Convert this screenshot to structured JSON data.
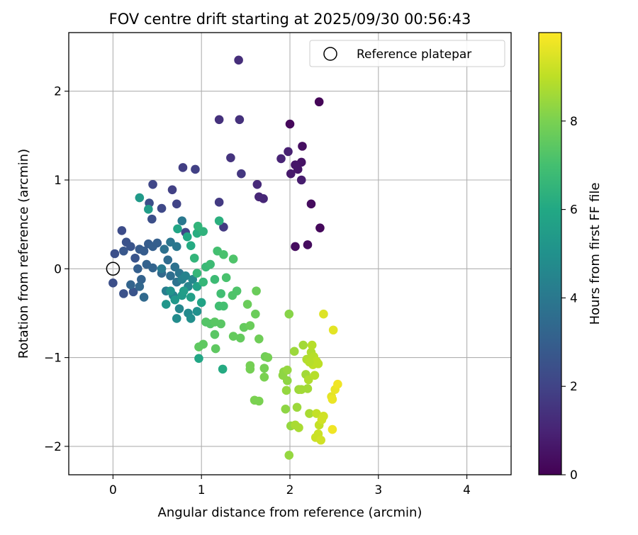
{
  "chart_data": {
    "type": "scatter",
    "title": "FOV centre drift starting at 2025/09/30 00:56:43",
    "xlabel": "Angular distance from reference (arcmin)",
    "ylabel": "Rotation from reference (arcmin)",
    "xlim": [
      -0.5,
      4.5
    ],
    "ylim": [
      -2.32,
      2.66
    ],
    "xticks": [
      0,
      1,
      2,
      3,
      4
    ],
    "yticks": [
      -2,
      -1,
      0,
      1,
      2
    ],
    "grid": true,
    "legend": {
      "position": "top-right",
      "entries": [
        "Reference platepar"
      ]
    },
    "reference_point": {
      "x": 0,
      "y": 0,
      "label": "Reference platepar"
    },
    "colorbar": {
      "label": "Hours from first FF file",
      "min": 0,
      "max": 10,
      "ticks": [
        0,
        2,
        4,
        6,
        8
      ],
      "colormap": "viridis"
    },
    "points": [
      [
        2.33,
        1.88,
        0.1
      ],
      [
        2.0,
        1.63,
        0.2
      ],
      [
        2.34,
        0.46,
        0.2
      ],
      [
        2.24,
        0.73,
        0.3
      ],
      [
        2.2,
        0.27,
        0.3
      ],
      [
        2.06,
        0.25,
        0.3
      ],
      [
        2.14,
        1.38,
        0.4
      ],
      [
        2.13,
        1.2,
        0.5
      ],
      [
        2.06,
        1.17,
        0.6
      ],
      [
        2.09,
        1.12,
        0.6
      ],
      [
        2.01,
        1.07,
        0.7
      ],
      [
        2.13,
        1.0,
        0.8
      ],
      [
        1.98,
        1.32,
        0.9
      ],
      [
        1.9,
        1.24,
        1.0
      ],
      [
        1.65,
        0.81,
        1.1
      ],
      [
        1.7,
        0.79,
        1.1
      ],
      [
        1.63,
        0.95,
        1.2
      ],
      [
        1.42,
        2.35,
        1.3
      ],
      [
        1.43,
        1.68,
        1.4
      ],
      [
        1.2,
        1.68,
        1.4
      ],
      [
        1.33,
        1.25,
        1.5
      ],
      [
        1.45,
        1.07,
        1.6
      ],
      [
        1.25,
        0.47,
        1.7
      ],
      [
        1.2,
        0.75,
        1.7
      ],
      [
        0.79,
        1.14,
        1.8
      ],
      [
        0.93,
        1.12,
        1.9
      ],
      [
        0.67,
        0.89,
        1.9
      ],
      [
        0.72,
        0.73,
        2.0
      ],
      [
        0.82,
        0.41,
        2.1
      ],
      [
        0.45,
        0.95,
        2.1
      ],
      [
        0.55,
        0.68,
        2.2
      ],
      [
        0.41,
        0.74,
        2.4
      ],
      [
        0.44,
        0.56,
        2.4
      ],
      [
        0.1,
        0.43,
        2.3
      ],
      [
        0.02,
        0.17,
        2.4
      ],
      [
        0.0,
        -0.16,
        2.4
      ],
      [
        0.12,
        -0.28,
        2.5
      ],
      [
        0.23,
        -0.26,
        2.6
      ],
      [
        0.15,
        0.3,
        2.5
      ],
      [
        0.2,
        0.25,
        2.6
      ],
      [
        0.25,
        0.12,
        2.6
      ],
      [
        0.12,
        0.2,
        2.7
      ],
      [
        0.3,
        0.22,
        2.8
      ],
      [
        0.35,
        0.2,
        2.9
      ],
      [
        0.4,
        0.28,
        2.9
      ],
      [
        0.45,
        0.25,
        3.0
      ],
      [
        0.5,
        0.29,
        3.0
      ],
      [
        0.28,
        0.0,
        3.0
      ],
      [
        0.32,
        -0.12,
        3.1
      ],
      [
        0.38,
        0.05,
        3.1
      ],
      [
        0.45,
        0.01,
        3.2
      ],
      [
        0.2,
        -0.18,
        3.2
      ],
      [
        0.3,
        -0.2,
        3.3
      ],
      [
        0.35,
        -0.32,
        3.4
      ],
      [
        0.55,
        -0.05,
        3.4
      ],
      [
        0.62,
        0.1,
        3.5
      ],
      [
        0.65,
        -0.08,
        3.6
      ],
      [
        0.7,
        0.02,
        3.7
      ],
      [
        0.72,
        -0.15,
        3.8
      ],
      [
        0.75,
        -0.05,
        3.9
      ],
      [
        0.58,
        0.22,
        3.7
      ],
      [
        0.65,
        0.3,
        3.9
      ],
      [
        0.72,
        0.25,
        4.0
      ],
      [
        0.78,
        0.54,
        4.0
      ],
      [
        0.55,
        0.0,
        4.1
      ],
      [
        0.6,
        -0.25,
        4.2
      ],
      [
        0.68,
        -0.3,
        4.3
      ],
      [
        0.78,
        -0.12,
        4.3
      ],
      [
        0.82,
        -0.08,
        4.4
      ],
      [
        0.85,
        -0.2,
        4.5
      ],
      [
        0.9,
        -0.12,
        4.6
      ],
      [
        0.75,
        -0.45,
        4.6
      ],
      [
        0.85,
        -0.5,
        4.7
      ],
      [
        0.72,
        -0.56,
        4.8
      ],
      [
        0.88,
        -0.56,
        4.9
      ],
      [
        0.95,
        -0.48,
        5.0
      ],
      [
        0.65,
        -0.25,
        5.1
      ],
      [
        0.6,
        -0.4,
        5.2
      ],
      [
        0.7,
        -0.35,
        5.3
      ],
      [
        0.78,
        -0.3,
        5.4
      ],
      [
        0.8,
        -0.25,
        5.5
      ],
      [
        0.88,
        -0.32,
        5.6
      ],
      [
        0.95,
        -0.2,
        5.7
      ],
      [
        1.0,
        -0.38,
        5.8
      ],
      [
        0.4,
        0.67,
        5.5
      ],
      [
        0.3,
        0.8,
        5.4
      ],
      [
        0.73,
        0.45,
        5.9
      ],
      [
        0.84,
        0.36,
        6.0
      ],
      [
        0.88,
        0.26,
        6.1
      ],
      [
        0.95,
        0.4,
        6.2
      ],
      [
        0.97,
        -1.01,
        5.9
      ],
      [
        1.24,
        -1.13,
        6.1
      ],
      [
        1.2,
        0.54,
        6.3
      ],
      [
        1.02,
        0.42,
        6.4
      ],
      [
        0.96,
        0.48,
        6.5
      ],
      [
        0.92,
        0.12,
        6.5
      ],
      [
        0.95,
        -0.05,
        6.6
      ],
      [
        1.02,
        -0.15,
        6.6
      ],
      [
        1.05,
        0.02,
        6.7
      ],
      [
        1.1,
        0.05,
        6.8
      ],
      [
        1.15,
        -0.12,
        6.8
      ],
      [
        1.22,
        -0.28,
        6.9
      ],
      [
        1.2,
        -0.42,
        6.9
      ],
      [
        1.25,
        -0.42,
        7.0
      ],
      [
        1.18,
        0.2,
        7.0
      ],
      [
        1.25,
        0.16,
        7.1
      ],
      [
        1.28,
        -0.1,
        7.1
      ],
      [
        1.35,
        -0.3,
        7.2
      ],
      [
        1.4,
        -0.25,
        7.2
      ],
      [
        1.36,
        0.11,
        7.2
      ],
      [
        1.05,
        -0.6,
        7.3
      ],
      [
        1.1,
        -0.62,
        7.3
      ],
      [
        1.15,
        -0.6,
        7.4
      ],
      [
        1.22,
        -0.62,
        7.4
      ],
      [
        1.15,
        -0.74,
        7.4
      ],
      [
        1.16,
        -0.9,
        7.5
      ],
      [
        1.02,
        -0.85,
        7.5
      ],
      [
        0.97,
        -0.88,
        7.5
      ],
      [
        1.36,
        -0.76,
        7.6
      ],
      [
        1.44,
        -0.78,
        7.6
      ],
      [
        1.48,
        -0.66,
        7.6
      ],
      [
        1.52,
        -0.4,
        7.7
      ],
      [
        1.55,
        -0.64,
        7.7
      ],
      [
        1.61,
        -0.51,
        7.7
      ],
      [
        1.62,
        -0.25,
        7.7
      ],
      [
        1.65,
        -0.79,
        7.8
      ],
      [
        1.72,
        -0.99,
        7.8
      ],
      [
        1.55,
        -1.09,
        7.9
      ],
      [
        1.55,
        -1.13,
        7.9
      ],
      [
        1.75,
        -1.0,
        7.9
      ],
      [
        1.71,
        -1.12,
        7.9
      ],
      [
        1.71,
        -1.22,
        8.0
      ],
      [
        1.6,
        -1.48,
        8.0
      ],
      [
        1.65,
        -1.49,
        8.0
      ],
      [
        1.99,
        -0.51,
        8.2
      ],
      [
        1.93,
        -1.16,
        8.3
      ],
      [
        1.97,
        -1.26,
        8.3
      ],
      [
        1.95,
        -1.58,
        8.3
      ],
      [
        1.96,
        -1.37,
        8.4
      ],
      [
        2.01,
        -1.77,
        8.4
      ],
      [
        1.99,
        -2.1,
        8.4
      ],
      [
        2.05,
        -0.93,
        8.5
      ],
      [
        2.08,
        -1.56,
        8.5
      ],
      [
        2.1,
        -1.36,
        8.5
      ],
      [
        2.13,
        -1.36,
        8.6
      ],
      [
        2.15,
        -0.86,
        8.6
      ],
      [
        2.18,
        -1.19,
        8.6
      ],
      [
        2.2,
        -1.35,
        8.6
      ],
      [
        2.22,
        -1.63,
        8.7
      ],
      [
        2.06,
        -1.76,
        8.7
      ],
      [
        2.1,
        -1.79,
        8.7
      ],
      [
        2.19,
        -1.02,
        8.8
      ],
      [
        2.21,
        -1.25,
        8.8
      ],
      [
        2.24,
        -0.94,
        8.8
      ],
      [
        2.25,
        -0.86,
        8.9
      ],
      [
        2.27,
        -0.99,
        8.9
      ],
      [
        2.28,
        -1.2,
        8.9
      ],
      [
        2.3,
        -1.04,
        9.0
      ],
      [
        2.32,
        -1.07,
        9.0
      ],
      [
        2.3,
        -1.63,
        9.1
      ],
      [
        2.33,
        -1.76,
        9.1
      ],
      [
        2.32,
        -1.86,
        9.2
      ],
      [
        2.29,
        -1.9,
        9.2
      ],
      [
        2.35,
        -1.93,
        9.3
      ],
      [
        2.36,
        -1.7,
        9.3
      ],
      [
        2.38,
        -1.66,
        9.3
      ],
      [
        2.38,
        -0.51,
        9.5
      ],
      [
        2.49,
        -0.69,
        9.6
      ],
      [
        2.47,
        -1.44,
        9.6
      ],
      [
        2.48,
        -1.47,
        9.7
      ],
      [
        2.51,
        -1.36,
        9.7
      ],
      [
        2.54,
        -1.3,
        9.8
      ],
      [
        2.48,
        -1.81,
        9.8
      ],
      [
        2.26,
        -1.08,
        9.0
      ],
      [
        2.22,
        -1.05,
        8.9
      ],
      [
        1.92,
        -1.2,
        8.3
      ],
      [
        1.97,
        -1.14,
        8.4
      ]
    ]
  }
}
